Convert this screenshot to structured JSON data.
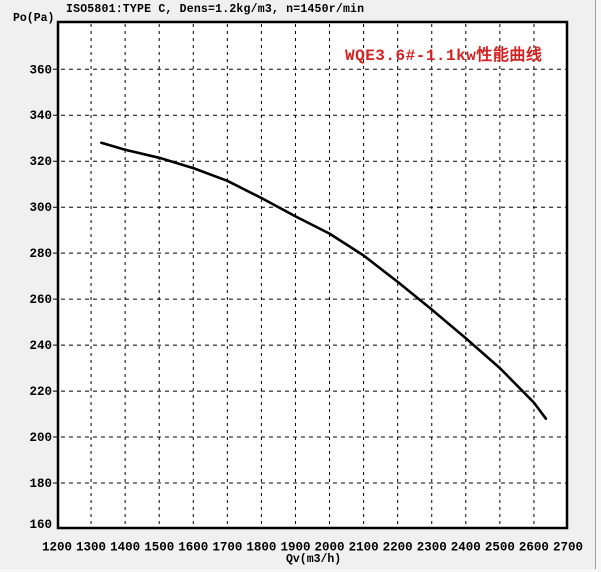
{
  "window": {
    "background": "#f0f0f0",
    "plot_background": "#ffffff",
    "frame_color": "#000000",
    "panel_edge_color": "#9f9f9f"
  },
  "header": {
    "title": "ISO5801:TYPE C, Dens=1.2kg/m3, n=1450r/min"
  },
  "chart_data": {
    "type": "line",
    "title": "WQE3.6#-1.1kw性能曲线",
    "title_color": "#d22222",
    "xlabel": "Qv(m3/h)",
    "ylabel": "Po(Pa)",
    "xlim": [
      1200,
      2700
    ],
    "ylim": [
      160,
      381
    ],
    "xticks": [
      1200,
      1300,
      1400,
      1500,
      1600,
      1700,
      1800,
      1900,
      2000,
      2100,
      2200,
      2300,
      2400,
      2500,
      2600,
      2700
    ],
    "yticks": [
      160,
      180,
      200,
      220,
      240,
      260,
      280,
      300,
      320,
      340,
      360
    ],
    "grid": true,
    "grid_style": "dashed",
    "legend_position": "none",
    "series": [
      {
        "name": "WQE3.6#-1.1kw",
        "color": "#000000",
        "x": [
          1330,
          1400,
          1500,
          1600,
          1700,
          1800,
          1900,
          2000,
          2100,
          2200,
          2300,
          2400,
          2500,
          2600,
          2635
        ],
        "y": [
          328,
          325,
          321.5,
          317,
          311.5,
          304,
          296,
          288.5,
          279,
          267.5,
          255.5,
          243,
          230,
          215,
          208
        ]
      }
    ]
  }
}
